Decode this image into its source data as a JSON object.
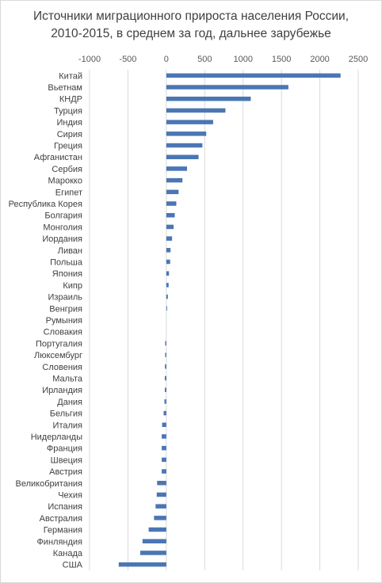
{
  "chart_data": {
    "type": "bar",
    "orientation": "horizontal",
    "title_line1": "Источники миграционного прироста населения России,",
    "title_line2": "2010-2015, в среднем за год, дальнее зарубежье",
    "xlabel": "",
    "ylabel": "",
    "xlim": [
      -1000,
      2500
    ],
    "x_ticks": [
      -1000,
      -500,
      0,
      500,
      1000,
      1500,
      2000,
      2500
    ],
    "x_tick_labels": [
      "-1000",
      "-500",
      "0",
      "500",
      "1000",
      "1500",
      "2000",
      "2500"
    ],
    "x_axis_position": "top",
    "grid": true,
    "legend": "none",
    "bar_color": "#4a76b4",
    "categories": [
      "Китай",
      "Вьетнам",
      "КНДР",
      "Турция",
      "Индия",
      "Сирия",
      "Греция",
      "Афганистан",
      "Сербия",
      "Марокко",
      "Египет",
      "Республика Корея",
      "Болгария",
      "Монголия",
      "Иордания",
      "Ливан",
      "Польша",
      "Япония",
      "Кипр",
      "Израиль",
      "Венгрия",
      "Румыния",
      "Словакия",
      "Португалия",
      "Люксембург",
      "Словения",
      "Мальта",
      "Ирландия",
      "Дания",
      "Бельгия",
      "Италия",
      "Нидерланды",
      "Франция",
      "Швеция",
      "Австрия",
      "Великобритания",
      "Чехия",
      "Испания",
      "Австралия",
      "Германия",
      "Финляндия",
      "Канада",
      "США"
    ],
    "values": [
      2270,
      1590,
      1100,
      770,
      610,
      520,
      470,
      420,
      270,
      210,
      160,
      130,
      110,
      95,
      75,
      55,
      50,
      35,
      30,
      20,
      10,
      0,
      0,
      -15,
      -15,
      -18,
      -20,
      -20,
      -25,
      -35,
      -55,
      -60,
      -60,
      -60,
      -60,
      -120,
      -125,
      -140,
      -160,
      -230,
      -310,
      -340,
      -620
    ]
  }
}
